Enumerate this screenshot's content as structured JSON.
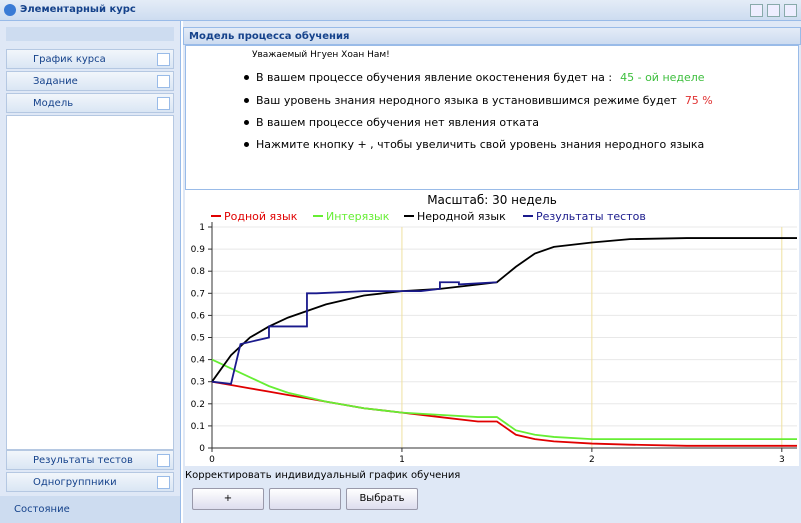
{
  "window": {
    "title": "Элементарный курс"
  },
  "sidebar": {
    "top_items": [
      "График курса",
      "Задание",
      "Модель"
    ],
    "bottom_items": [
      "Результаты тестов",
      "Одногруппники"
    ],
    "footer": "Состояние"
  },
  "panel": {
    "title": "Модель процесса обучения",
    "greeting": "Уважаемый Нгуен Хоан Нам!",
    "bullets": [
      {
        "text": "В вашем процессе обучения явление окостенения  будет на :",
        "highlight": "45 - ой неделе",
        "highlight_color": "#3cbe3c"
      },
      {
        "text": "Ваш уровень знания неродного языка в установившимся режиме будет",
        "highlight": "75 %",
        "highlight_color": "#e03030"
      },
      {
        "text": "В вашем процессе обучения нет явления отката"
      },
      {
        "text": "Нажмите кнопку + , чтобы увеличить свой уровень знания неродного языка"
      }
    ],
    "footer_label": "Корректировать индивидуальный график обучения",
    "buttons": [
      "+",
      "Выбрать"
    ]
  },
  "chart": {
    "type": "line",
    "title": "Масштаб: 30 недель",
    "x": [
      0,
      0.1,
      0.2,
      0.3,
      0.4,
      0.5,
      0.6,
      0.8,
      1,
      1.2,
      1.4,
      1.5,
      1.6,
      1.7,
      1.8,
      2,
      2.2,
      2.5,
      3.08
    ],
    "series": [
      {
        "name": "Родной язык",
        "color": "#e00000",
        "values": [
          0.3,
          0.285,
          0.27,
          0.255,
          0.24,
          0.225,
          0.21,
          0.18,
          0.16,
          0.14,
          0.12,
          0.12,
          0.06,
          0.04,
          0.03,
          0.02,
          0.015,
          0.01,
          0.01
        ]
      },
      {
        "name": "Интерязык",
        "color": "#66ee33",
        "values": [
          0.4,
          0.36,
          0.32,
          0.28,
          0.25,
          0.23,
          0.21,
          0.18,
          0.16,
          0.15,
          0.14,
          0.14,
          0.08,
          0.06,
          0.05,
          0.04,
          0.04,
          0.04,
          0.04
        ]
      },
      {
        "name": "Неродной язык",
        "color": "#000000",
        "values": [
          0.3,
          0.42,
          0.5,
          0.55,
          0.59,
          0.62,
          0.65,
          0.69,
          0.71,
          0.72,
          0.74,
          0.75,
          0.82,
          0.88,
          0.91,
          0.93,
          0.945,
          0.95,
          0.95
        ]
      },
      {
        "name": "Результаты тестов",
        "color": "#1a1a8c",
        "x": [
          0,
          0.1,
          0.15,
          0.3,
          0.3,
          0.5,
          0.5,
          0.55,
          0.8,
          1.1,
          1.2,
          1.2,
          1.3,
          1.3,
          1.5
        ],
        "values": [
          0.3,
          0.29,
          0.47,
          0.5,
          0.55,
          0.55,
          0.7,
          0.7,
          0.71,
          0.71,
          0.72,
          0.75,
          0.75,
          0.74,
          0.75
        ]
      }
    ],
    "xlim": [
      0,
      3.08
    ],
    "ylim": [
      0,
      1
    ],
    "xticks": [
      0,
      1,
      2,
      3
    ],
    "yticks": [
      0,
      0.1,
      0.2,
      0.3,
      0.4,
      0.5,
      0.6,
      0.7,
      0.8,
      0.9,
      1
    ],
    "grid": true
  }
}
